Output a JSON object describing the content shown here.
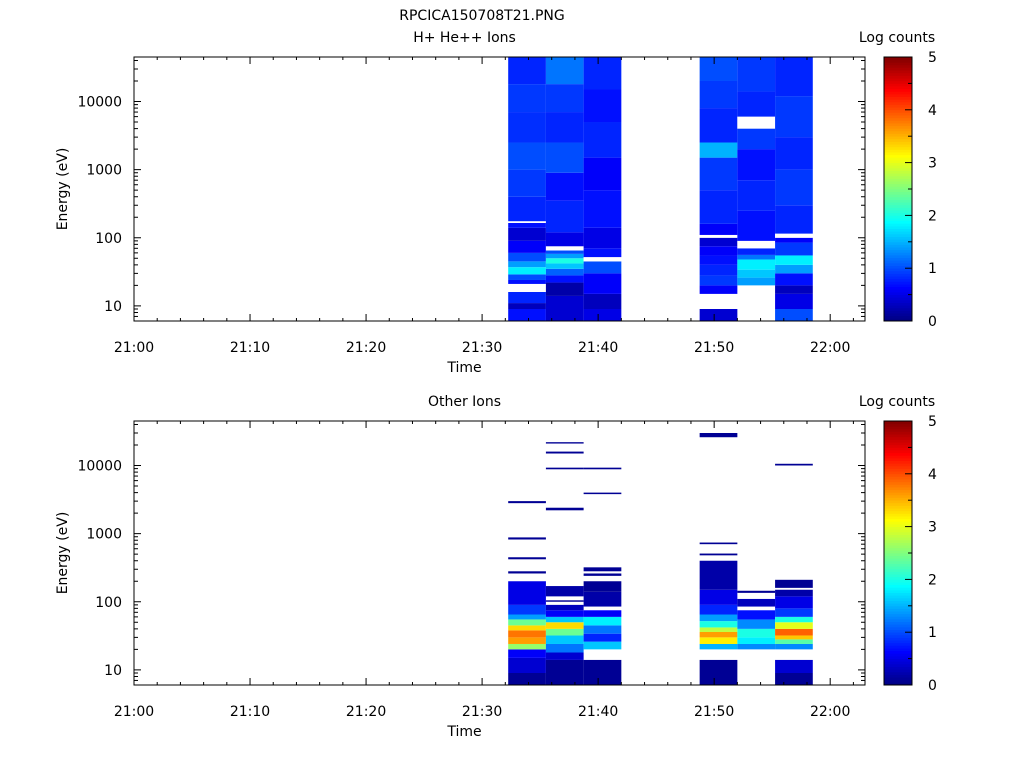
{
  "figure_title": "RPCICA150708T21.PNG",
  "chart_data": [
    {
      "type": "heatmap",
      "title": "H+ He++ Ions",
      "xlabel": "Time",
      "ylabel": "Energy (eV)",
      "colorbar_label": "Log counts",
      "colorbar_ticks": [
        "0",
        "1",
        "2",
        "3",
        "4",
        "5"
      ],
      "colorbar_range": [
        0,
        5
      ],
      "x_ticks": [
        "21:00",
        "21:10",
        "21:20",
        "21:30",
        "21:40",
        "21:50",
        "22:00"
      ],
      "y_ticks": [
        "10",
        "100",
        "1000",
        "10000"
      ],
      "ylim": [
        6,
        45000
      ],
      "y_scale": "log",
      "xlim": [
        "21:00",
        "22:03"
      ],
      "columns": [
        {
          "start": "21:32:15",
          "end": "21:35:30",
          "bins": [
            [
              6,
              9,
              0.7
            ],
            [
              9,
              11,
              0.3
            ],
            [
              11,
              16,
              0.8
            ],
            [
              16,
              21,
              -1
            ],
            [
              21,
              24,
              0.7
            ],
            [
              24,
              29,
              1.0
            ],
            [
              29,
              37,
              1.8
            ],
            [
              37,
              45,
              1.4
            ],
            [
              45,
              60,
              1.0
            ],
            [
              60,
              90,
              0.6
            ],
            [
              90,
              140,
              0.4
            ],
            [
              140,
              165,
              0.7
            ],
            [
              165,
              175,
              -1
            ],
            [
              175,
              400,
              0.8
            ],
            [
              400,
              1000,
              0.9
            ],
            [
              1000,
              2500,
              1.0
            ],
            [
              2500,
              7000,
              0.85
            ],
            [
              7000,
              18000,
              0.9
            ],
            [
              18000,
              45000,
              0.8
            ]
          ]
        },
        {
          "start": "21:35:30",
          "end": "21:38:45",
          "bins": [
            [
              6,
              14,
              0.4
            ],
            [
              14,
              22,
              0.2
            ],
            [
              22,
              28,
              0.7
            ],
            [
              28,
              35,
              1.1
            ],
            [
              35,
              42,
              1.6
            ],
            [
              42,
              50,
              2.0
            ],
            [
              50,
              58,
              1.4
            ],
            [
              58,
              65,
              1.0
            ],
            [
              65,
              75,
              -1
            ],
            [
              75,
              120,
              0.5
            ],
            [
              120,
              350,
              0.8
            ],
            [
              350,
              900,
              0.7
            ],
            [
              900,
              2500,
              1.0
            ],
            [
              2500,
              7000,
              0.8
            ],
            [
              7000,
              18000,
              0.9
            ],
            [
              18000,
              45000,
              1.2
            ]
          ]
        },
        {
          "start": "21:38:45",
          "end": "21:42:00",
          "bins": [
            [
              6,
              9,
              0.5
            ],
            [
              9,
              15,
              0.3
            ],
            [
              15,
              30,
              0.6
            ],
            [
              30,
              45,
              1.0
            ],
            [
              45,
              52,
              -1
            ],
            [
              52,
              70,
              0.7
            ],
            [
              70,
              140,
              0.5
            ],
            [
              140,
              500,
              0.7
            ],
            [
              500,
              1500,
              0.6
            ],
            [
              1500,
              5000,
              0.8
            ],
            [
              5000,
              15000,
              0.7
            ],
            [
              15000,
              45000,
              0.8
            ]
          ]
        },
        {
          "start": "21:48:45",
          "end": "21:52:00",
          "bins": [
            [
              6,
              9,
              0.4
            ],
            [
              15,
              20,
              0.6
            ],
            [
              20,
              28,
              0.9
            ],
            [
              28,
              40,
              0.8
            ],
            [
              40,
              55,
              0.7
            ],
            [
              55,
              75,
              0.6
            ],
            [
              75,
              100,
              0.4
            ],
            [
              100,
              110,
              -1
            ],
            [
              110,
              160,
              0.6
            ],
            [
              160,
              500,
              0.8
            ],
            [
              500,
              1500,
              0.9
            ],
            [
              1500,
              2500,
              1.5
            ],
            [
              2500,
              8000,
              0.8
            ],
            [
              8000,
              20000,
              0.9
            ],
            [
              20000,
              45000,
              1.0
            ]
          ]
        },
        {
          "start": "21:52:00",
          "end": "21:55:15",
          "bins": [
            [
              20,
              26,
              1.4
            ],
            [
              26,
              34,
              1.6
            ],
            [
              34,
              48,
              1.8
            ],
            [
              48,
              56,
              1.2
            ],
            [
              56,
              70,
              0.8
            ],
            [
              70,
              90,
              -1
            ],
            [
              90,
              250,
              0.7
            ],
            [
              250,
              700,
              0.8
            ],
            [
              700,
              2000,
              0.7
            ],
            [
              2000,
              4000,
              0.9
            ],
            [
              4000,
              6000,
              -1
            ],
            [
              6000,
              14000,
              0.8
            ],
            [
              14000,
              45000,
              0.9
            ]
          ]
        },
        {
          "start": "21:55:15",
          "end": "21:58:30",
          "bins": [
            [
              6,
              9,
              1.0
            ],
            [
              9,
              15,
              0.5
            ],
            [
              15,
              20,
              0.3
            ],
            [
              20,
              30,
              0.7
            ],
            [
              30,
              40,
              1.4
            ],
            [
              40,
              55,
              1.8
            ],
            [
              55,
              85,
              0.9
            ],
            [
              85,
              100,
              0.6
            ],
            [
              100,
              115,
              -1
            ],
            [
              115,
              300,
              0.8
            ],
            [
              300,
              1000,
              0.9
            ],
            [
              1000,
              3000,
              0.8
            ],
            [
              3000,
              12000,
              0.9
            ],
            [
              12000,
              45000,
              0.8
            ]
          ]
        }
      ]
    },
    {
      "type": "heatmap",
      "title": "Other Ions",
      "xlabel": "Time",
      "ylabel": "Energy (eV)",
      "colorbar_label": "Log counts",
      "colorbar_ticks": [
        "0",
        "1",
        "2",
        "3",
        "4",
        "5"
      ],
      "colorbar_range": [
        0,
        5
      ],
      "x_ticks": [
        "21:00",
        "21:10",
        "21:20",
        "21:30",
        "21:40",
        "21:50",
        "22:00"
      ],
      "y_ticks": [
        "10",
        "100",
        "1000",
        "10000"
      ],
      "ylim": [
        6,
        45000
      ],
      "y_scale": "log",
      "xlim": [
        "21:00",
        "22:03"
      ],
      "columns": [
        {
          "start": "21:32:15",
          "end": "21:35:30",
          "bins": [
            [
              6,
              9,
              0.1
            ],
            [
              9,
              15,
              0.4
            ],
            [
              15,
              20,
              0.6
            ],
            [
              20,
              24,
              2.6
            ],
            [
              24,
              30,
              3.6
            ],
            [
              30,
              38,
              3.8
            ],
            [
              38,
              45,
              3.3
            ],
            [
              45,
              55,
              2.4
            ],
            [
              55,
              65,
              1.4
            ],
            [
              65,
              90,
              0.9
            ],
            [
              90,
              200,
              0.5
            ],
            [
              260,
              280,
              0.1
            ],
            [
              420,
              450,
              0.1
            ],
            [
              820,
              880,
              0.1
            ],
            [
              2800,
              3000,
              0.1
            ]
          ]
        },
        {
          "start": "21:35:30",
          "end": "21:38:45",
          "bins": [
            [
              6,
              14,
              0.1
            ],
            [
              14,
              18,
              0.4
            ],
            [
              18,
              24,
              1.2
            ],
            [
              24,
              32,
              1.6
            ],
            [
              32,
              40,
              2.4
            ],
            [
              40,
              50,
              3.3
            ],
            [
              50,
              60,
              1.6
            ],
            [
              60,
              75,
              0.6
            ],
            [
              75,
              90,
              0.3
            ],
            [
              100,
              105,
              0.1
            ],
            [
              120,
              170,
              0.2
            ],
            [
              2200,
              2400,
              0.1
            ],
            [
              8800,
              9300,
              0.1
            ],
            [
              15000,
              16000,
              0.1
            ],
            [
              21000,
              22000,
              0.1
            ]
          ]
        },
        {
          "start": "21:38:45",
          "end": "21:42:00",
          "bins": [
            [
              6,
              14,
              0.1
            ],
            [
              20,
              26,
              1.6
            ],
            [
              26,
              34,
              0.8
            ],
            [
              34,
              45,
              1.2
            ],
            [
              45,
              60,
              1.8
            ],
            [
              60,
              75,
              0.6
            ],
            [
              85,
              140,
              0.2
            ],
            [
              140,
              200,
              0.1
            ],
            [
              240,
              260,
              0.1
            ],
            [
              280,
              320,
              0.1
            ],
            [
              3800,
              4000,
              0.1
            ],
            [
              8800,
              9300,
              0.1
            ]
          ]
        },
        {
          "start": "21:48:45",
          "end": "21:52:00",
          "bins": [
            [
              6,
              14,
              0.1
            ],
            [
              20,
              24,
              1.5
            ],
            [
              24,
              30,
              3.2
            ],
            [
              30,
              36,
              3.6
            ],
            [
              36,
              42,
              2.8
            ],
            [
              42,
              52,
              2.0
            ],
            [
              52,
              65,
              1.4
            ],
            [
              65,
              90,
              0.8
            ],
            [
              90,
              150,
              0.5
            ],
            [
              150,
              400,
              0.2
            ],
            [
              480,
              510,
              0.1
            ],
            [
              700,
              740,
              0.1
            ],
            [
              26000,
              30000,
              0.1
            ]
          ]
        },
        {
          "start": "21:52:00",
          "end": "21:55:15",
          "bins": [
            [
              20,
              24,
              1.3
            ],
            [
              24,
              30,
              1.8
            ],
            [
              30,
              40,
              2.0
            ],
            [
              40,
              55,
              1.3
            ],
            [
              55,
              75,
              0.7
            ],
            [
              85,
              110,
              0.3
            ],
            [
              135,
              145,
              0.1
            ]
          ]
        },
        {
          "start": "21:55:15",
          "end": "21:58:30",
          "bins": [
            [
              6,
              9,
              0.1
            ],
            [
              9,
              14,
              0.4
            ],
            [
              20,
              24,
              1.3
            ],
            [
              24,
              28,
              2.3
            ],
            [
              28,
              32,
              3.4
            ],
            [
              32,
              40,
              3.9
            ],
            [
              40,
              50,
              3.0
            ],
            [
              50,
              60,
              2.0
            ],
            [
              60,
              80,
              0.9
            ],
            [
              80,
              120,
              0.5
            ],
            [
              120,
              150,
              0.2
            ],
            [
              160,
              210,
              0.1
            ],
            [
              10000,
              10600,
              0.1
            ]
          ]
        }
      ]
    }
  ]
}
